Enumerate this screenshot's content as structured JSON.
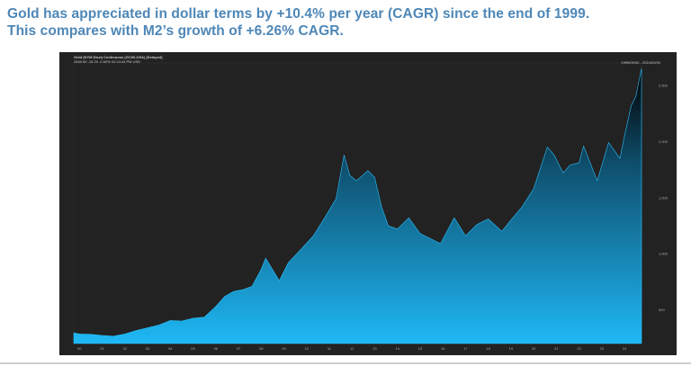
{
  "headline": {
    "line1": "Gold has appreciated in dollar terms by +10.4% per year (CAGR) since the end of 1999.",
    "line2": "This compares with M2’s growth of +6.26% CAGR."
  },
  "chart_header": {
    "title": "Gold (NYM $/ozt) Continuous (GC00-USA) [Delayed]",
    "quote": "2649.90  -15.20  -0.60%  02:24:44 PM  USD",
    "date_range": "1999/09/30 - 2024/09/30"
  },
  "colors": {
    "fill_top": "#000000",
    "fill_bottom": "#1eb8f5",
    "background": "#222222",
    "headline": "#4e87b7"
  },
  "chart_data": {
    "type": "area",
    "title": "Gold (NYM $/ozt) Continuous (GC00-USA) [Delayed]",
    "xlabel": "",
    "ylabel": "",
    "grid": false,
    "xlim": [
      1999.75,
      2024.75
    ],
    "ylim": [
      200,
      2700
    ],
    "x_ticks": [
      "00",
      "01",
      "02",
      "03",
      "04",
      "05",
      "06",
      "07",
      "08",
      "09",
      "10",
      "11",
      "12",
      "13",
      "14",
      "15",
      "16",
      "17",
      "18",
      "19",
      "20",
      "21",
      "22",
      "23",
      "24"
    ],
    "y_ticks": [
      {
        "value": 2500,
        "label": "2,500"
      },
      {
        "value": 2000,
        "label": "2,000"
      },
      {
        "value": 1500,
        "label": "1,500"
      },
      {
        "value": 1000,
        "label": "1,000"
      },
      {
        "value": 500,
        "label": "500"
      }
    ],
    "series": [
      {
        "x": [
          1999.75,
          2000.0,
          2000.5,
          2001.0,
          2001.5,
          2002.0,
          2002.5,
          2003.0,
          2003.5,
          2004.0,
          2004.5,
          2005.0,
          2005.5,
          2006.0,
          2006.4,
          2006.8,
          2007.2,
          2007.6,
          2008.0,
          2008.2,
          2008.8,
          2009.2,
          2009.8,
          2010.3,
          2010.8,
          2011.3,
          2011.65,
          2011.9,
          2012.2,
          2012.7,
          2013.0,
          2013.3,
          2013.6,
          2014.0,
          2014.5,
          2015.0,
          2015.9,
          2016.5,
          2017.0,
          2017.5,
          2018.0,
          2018.6,
          2019.0,
          2019.5,
          2020.0,
          2020.6,
          2020.9,
          2021.3,
          2021.6,
          2022.0,
          2022.2,
          2022.8,
          2023.3,
          2023.8,
          2024.0,
          2024.3,
          2024.5,
          2024.75
        ],
        "values": [
          295,
          285,
          282,
          272,
          265,
          285,
          315,
          340,
          365,
          405,
          400,
          425,
          435,
          530,
          620,
          665,
          680,
          710,
          860,
          960,
          760,
          920,
          1050,
          1160,
          1320,
          1490,
          1880,
          1700,
          1650,
          1740,
          1680,
          1420,
          1250,
          1220,
          1320,
          1180,
          1090,
          1320,
          1160,
          1260,
          1310,
          1200,
          1300,
          1420,
          1580,
          1950,
          1880,
          1720,
          1790,
          1810,
          1960,
          1650,
          1990,
          1850,
          2050,
          2320,
          2400,
          2650
        ]
      }
    ]
  }
}
